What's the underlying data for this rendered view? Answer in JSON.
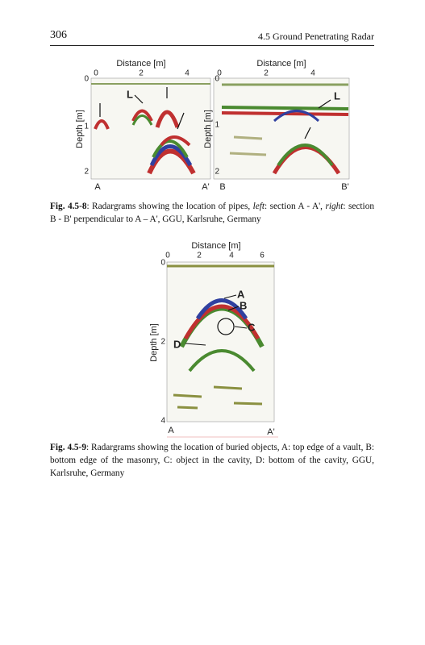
{
  "header": {
    "page_number": "306",
    "running_title": "4.5 Ground Penetrating Radar"
  },
  "figure_1": {
    "panels": [
      {
        "x_label": "Distance [m]",
        "x_ticks": [
          "0",
          "2",
          "4"
        ],
        "y_label": "Depth [m]",
        "y_ticks": [
          "0",
          "1",
          "2"
        ],
        "start": "A",
        "end": "A'",
        "annotations": [
          "L"
        ]
      },
      {
        "x_label": "Distance [m]",
        "x_ticks": [
          "0",
          "2",
          "4"
        ],
        "y_label": "Depth [m]",
        "y_ticks": [
          "0",
          "1",
          "2"
        ],
        "start": "B",
        "end": "B'",
        "annotations": [
          "L"
        ]
      }
    ],
    "caption": {
      "label": "Fig. 4.5-8",
      "parts": [
        ": Radargrams showing the location of pipes, ",
        "left",
        ": section A - A', ",
        "right",
        ": section B - B' perpendicular to A – A', GGU, Karlsruhe, Germany"
      ]
    }
  },
  "figure_2": {
    "x_label": "Distance [m]",
    "x_ticks": [
      "0",
      "2",
      "4",
      "6"
    ],
    "y_label": "Depth [m]",
    "y_ticks": [
      "0",
      "2",
      "4"
    ],
    "start": "A",
    "end": "A'",
    "annotations": [
      "A",
      "B",
      "C",
      "D"
    ],
    "caption": {
      "label": "Fig. 4.5-9",
      "text": ": Radargrams showing the location of buried objects, A: top edge of a vault, B: bottom edge of the masonry, C: object in the cavity, D: bottom of the cavity, GGU, Karlsruhe, Germany"
    }
  }
}
